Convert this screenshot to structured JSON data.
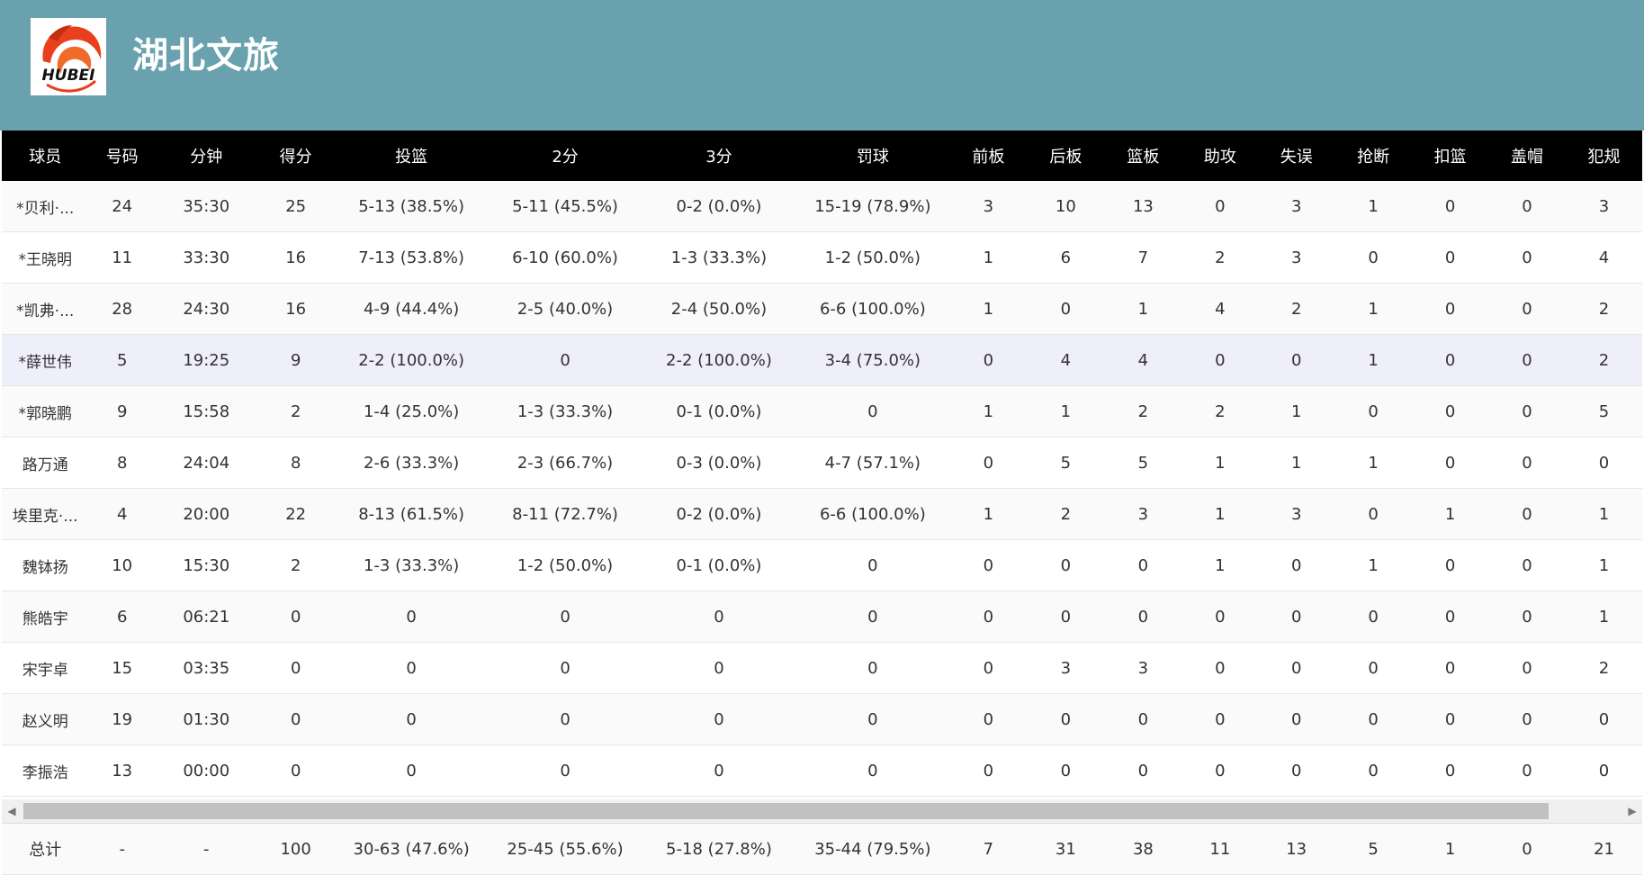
{
  "team": {
    "name": "湖北文旅",
    "logo_text": "HUBEI",
    "header_color": "#69a2ae"
  },
  "columns": [
    "球员",
    "号码",
    "分钟",
    "得分",
    "投篮",
    "2分",
    "3分",
    "罚球",
    "前板",
    "后板",
    "篮板",
    "助攻",
    "失误",
    "抢断",
    "扣篮",
    "盖帽",
    "犯规"
  ],
  "rows": [
    [
      "*贝利·...",
      "24",
      "35:30",
      "25",
      "5-13 (38.5%)",
      "5-11 (45.5%)",
      "0-2 (0.0%)",
      "15-19 (78.9%)",
      "3",
      "10",
      "13",
      "0",
      "3",
      "1",
      "0",
      "0",
      "3"
    ],
    [
      "*王晓明",
      "11",
      "33:30",
      "16",
      "7-13 (53.8%)",
      "6-10 (60.0%)",
      "1-3 (33.3%)",
      "1-2 (50.0%)",
      "1",
      "6",
      "7",
      "2",
      "3",
      "0",
      "0",
      "0",
      "4"
    ],
    [
      "*凯弗·...",
      "28",
      "24:30",
      "16",
      "4-9 (44.4%)",
      "2-5 (40.0%)",
      "2-4 (50.0%)",
      "6-6 (100.0%)",
      "1",
      "0",
      "1",
      "4",
      "2",
      "1",
      "0",
      "0",
      "2"
    ],
    [
      "*薛世伟",
      "5",
      "19:25",
      "9",
      "2-2 (100.0%)",
      "0",
      "2-2 (100.0%)",
      "3-4 (75.0%)",
      "0",
      "4",
      "4",
      "0",
      "0",
      "1",
      "0",
      "0",
      "2"
    ],
    [
      "*郭晓鹏",
      "9",
      "15:58",
      "2",
      "1-4 (25.0%)",
      "1-3 (33.3%)",
      "0-1 (0.0%)",
      "0",
      "1",
      "1",
      "2",
      "2",
      "1",
      "0",
      "0",
      "0",
      "5"
    ],
    [
      "路万通",
      "8",
      "24:04",
      "8",
      "2-6 (33.3%)",
      "2-3 (66.7%)",
      "0-3 (0.0%)",
      "4-7 (57.1%)",
      "0",
      "5",
      "5",
      "1",
      "1",
      "1",
      "0",
      "0",
      "0"
    ],
    [
      "埃里克·...",
      "4",
      "20:00",
      "22",
      "8-13 (61.5%)",
      "8-11 (72.7%)",
      "0-2 (0.0%)",
      "6-6 (100.0%)",
      "1",
      "2",
      "3",
      "1",
      "3",
      "0",
      "1",
      "0",
      "1"
    ],
    [
      "魏钵扬",
      "10",
      "15:30",
      "2",
      "1-3 (33.3%)",
      "1-2 (50.0%)",
      "0-1 (0.0%)",
      "0",
      "0",
      "0",
      "0",
      "1",
      "0",
      "1",
      "0",
      "0",
      "1"
    ],
    [
      "熊皓宇",
      "6",
      "06:21",
      "0",
      "0",
      "0",
      "0",
      "0",
      "0",
      "0",
      "0",
      "0",
      "0",
      "0",
      "0",
      "0",
      "1"
    ],
    [
      "宋宇卓",
      "15",
      "03:35",
      "0",
      "0",
      "0",
      "0",
      "0",
      "0",
      "3",
      "3",
      "0",
      "0",
      "0",
      "0",
      "0",
      "2"
    ],
    [
      "赵义明",
      "19",
      "01:30",
      "0",
      "0",
      "0",
      "0",
      "0",
      "0",
      "0",
      "0",
      "0",
      "0",
      "0",
      "0",
      "0",
      "0"
    ],
    [
      "李振浩",
      "13",
      "00:00",
      "0",
      "0",
      "0",
      "0",
      "0",
      "0",
      "0",
      "0",
      "0",
      "0",
      "0",
      "0",
      "0",
      "0"
    ]
  ],
  "highlighted_row": 3,
  "totals": [
    "总计",
    "-",
    "-",
    "100",
    "30-63 (47.6%)",
    "25-45 (55.6%)",
    "5-18 (27.8%)",
    "35-44 (79.5%)",
    "7",
    "31",
    "38",
    "11",
    "13",
    "5",
    "1",
    "0",
    "21"
  ]
}
